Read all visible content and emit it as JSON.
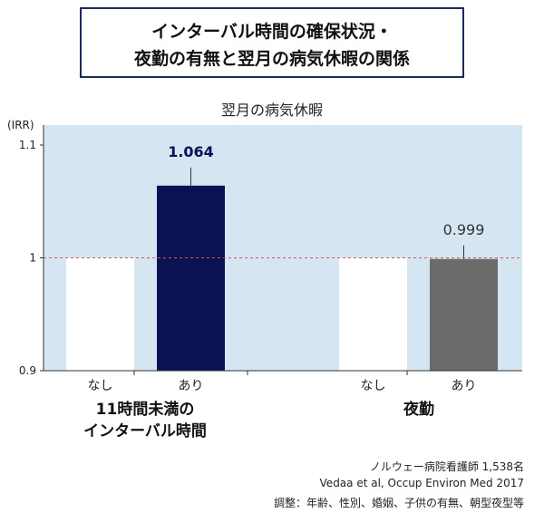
{
  "title": {
    "line1": "インターバル時間の確保状況・",
    "line2": "夜勤の有無と翌月の病気休暇の関係"
  },
  "subtitle": "翌月の病気休暇",
  "chart_data": {
    "type": "bar",
    "y_axis_label": "(IRR)",
    "ylim": [
      0.9,
      1.1
    ],
    "y_ticks": [
      {
        "value": 1.1,
        "label": "1.1"
      },
      {
        "value": 1.0,
        "label": "1"
      },
      {
        "value": 0.9,
        "label": "0.9"
      }
    ],
    "reference_line": 1.0,
    "grid": false,
    "groups": [
      {
        "name_lines": [
          "11時間未満の",
          "インターバル時間"
        ],
        "bars": [
          {
            "category": "なし",
            "value": 1.0,
            "label": "",
            "color": "#ffffff",
            "error_high": null
          },
          {
            "category": "あり",
            "value": 1.064,
            "label": "1.064",
            "color": "#0b1254",
            "error_high": 1.08
          }
        ]
      },
      {
        "name_lines": [
          "夜勤"
        ],
        "bars": [
          {
            "category": "なし",
            "value": 1.0,
            "label": "",
            "color": "#ffffff",
            "error_high": null
          },
          {
            "category": "あり",
            "value": 0.999,
            "label": "0.999",
            "color": "#6b6b6b",
            "error_high": 1.011
          }
        ]
      }
    ],
    "colors": {
      "plot_background": "#d6e5f2",
      "reference_line": "#d05a5a",
      "axis": "#333333",
      "label_group1": "#0b1254",
      "label_group2": "#333333"
    }
  },
  "source_lines": [
    "ノルウェー病院看護師 1,538名",
    "Vedaa et al, Occup Environ Med 2017",
    "調整：年齢、性別、婚姻、子供の有無、朝型夜型等"
  ]
}
